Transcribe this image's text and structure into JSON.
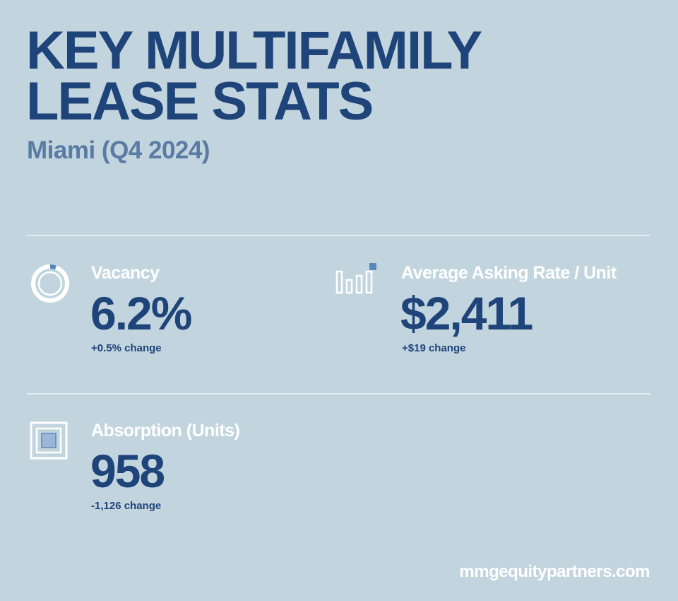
{
  "header": {
    "title": "KEY MULTIFAMILY\nLEASE STATS",
    "subtitle": "Miami (Q4 2024)"
  },
  "stats": {
    "vacancy": {
      "label": "Vacancy",
      "value": "6.2%",
      "change": "+0.5% change",
      "icon": "donut-ring-icon"
    },
    "rate": {
      "label": "Average Asking Rate / Unit",
      "value": "$2,411",
      "change": "+$19 change",
      "icon": "bar-chart-icon"
    },
    "absorption": {
      "label": "Absorption (Units)",
      "value": "958",
      "change": "-1,126 change",
      "icon": "nested-squares-icon"
    }
  },
  "footer": {
    "website": "mmgequitypartners.com"
  },
  "colors": {
    "background": "#c2d5df",
    "title": "#1f4479",
    "subtitle": "#5a7ba3",
    "accent": "#5a86be",
    "white": "#ffffff"
  }
}
